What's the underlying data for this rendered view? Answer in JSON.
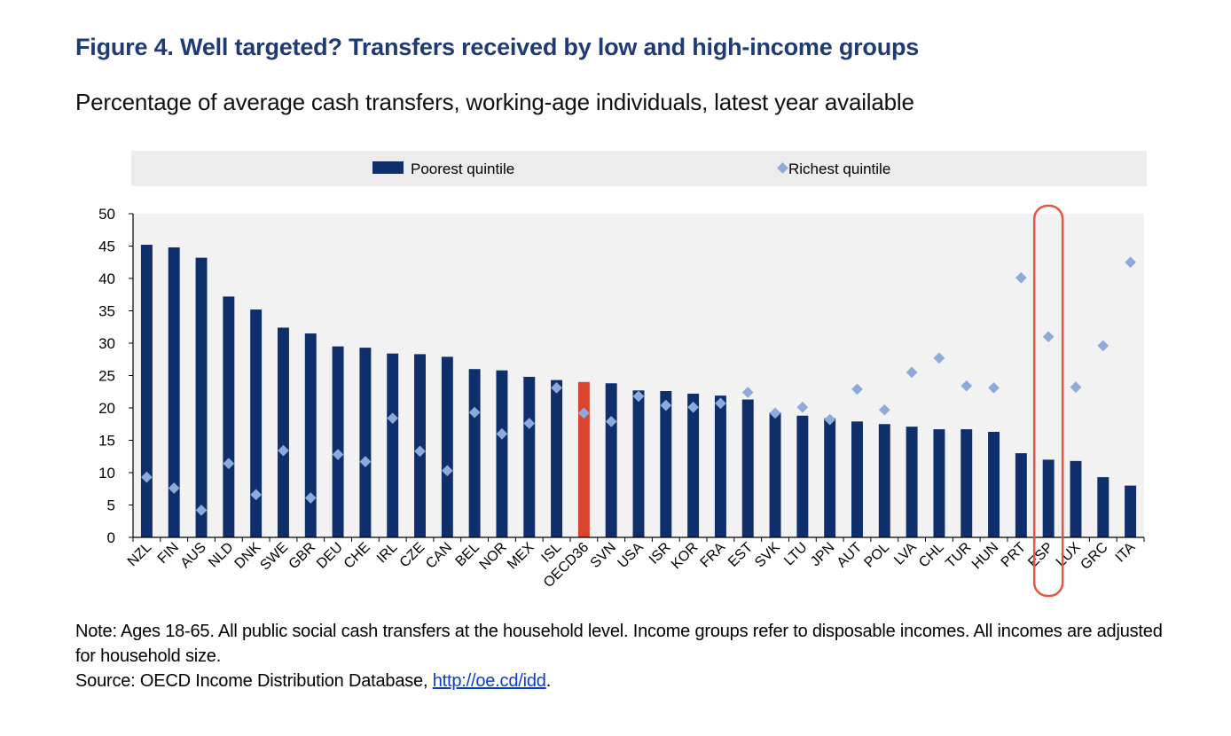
{
  "figure": {
    "title": "Figure 4. Well targeted? Transfers received by low and high-income groups",
    "subtitle": "Percentage of average cash transfers, working-age individuals, latest year available"
  },
  "note": {
    "text": "Note: Ages 18-65. All public social cash transfers at the household level. Income groups refer to disposable incomes. All incomes are adjusted for household size.",
    "source_prefix": "Source: OECD Income Distribution Database, ",
    "source_link": "http://oe.cd/idd",
    "source_suffix": "."
  },
  "colors": {
    "bar": "#0e2f6b",
    "bar_highlight": "#d9442c",
    "marker": "#8eaadb",
    "legend_bg": "#ececec",
    "plot_bg": "#f2f2f2",
    "highlight_outline": "#e8553e"
  },
  "chart_data": {
    "type": "bar",
    "categories": [
      "NZL",
      "FIN",
      "AUS",
      "NLD",
      "DNK",
      "SWE",
      "GBR",
      "DEU",
      "CHE",
      "IRL",
      "CZE",
      "CAN",
      "BEL",
      "NOR",
      "MEX",
      "ISL",
      "OECD36",
      "SVN",
      "USA",
      "ISR",
      "KOR",
      "FRA",
      "EST",
      "SVK",
      "LTU",
      "JPN",
      "AUT",
      "POL",
      "LVA",
      "CHL",
      "TUR",
      "HUN",
      "PRT",
      "ESP",
      "LUX",
      "GRC",
      "ITA"
    ],
    "series": [
      {
        "name": "Poorest quintile",
        "style": "bar",
        "values": [
          45.2,
          44.8,
          43.2,
          37.2,
          35.2,
          32.4,
          31.5,
          29.5,
          29.3,
          28.4,
          28.3,
          27.9,
          26.0,
          25.8,
          24.8,
          24.3,
          24.0,
          23.8,
          22.7,
          22.6,
          22.2,
          21.9,
          21.3,
          19.3,
          18.8,
          18.4,
          17.9,
          17.5,
          17.1,
          16.7,
          16.7,
          16.3,
          13.0,
          12.0,
          11.8,
          9.3,
          8.0
        ]
      },
      {
        "name": "Richest quintile",
        "style": "diamond",
        "values": [
          9.3,
          7.6,
          4.2,
          11.4,
          6.6,
          13.4,
          6.1,
          12.8,
          11.7,
          18.4,
          13.3,
          10.3,
          19.3,
          16.0,
          17.6,
          23.1,
          19.2,
          17.9,
          21.8,
          20.4,
          20.1,
          20.7,
          22.4,
          19.2,
          20.1,
          18.2,
          22.9,
          19.7,
          25.5,
          27.7,
          23.4,
          23.1,
          40.1,
          31.0,
          23.2,
          29.6,
          42.5
        ]
      }
    ],
    "highlight_bar": "OECD36",
    "highlight_outline_category": "ESP",
    "ylim": [
      0,
      50
    ],
    "yticks": [
      0,
      5,
      10,
      15,
      20,
      25,
      30,
      35,
      40,
      45,
      50
    ],
    "xlabel": "",
    "ylabel": "",
    "grid": false,
    "legend": "top"
  }
}
